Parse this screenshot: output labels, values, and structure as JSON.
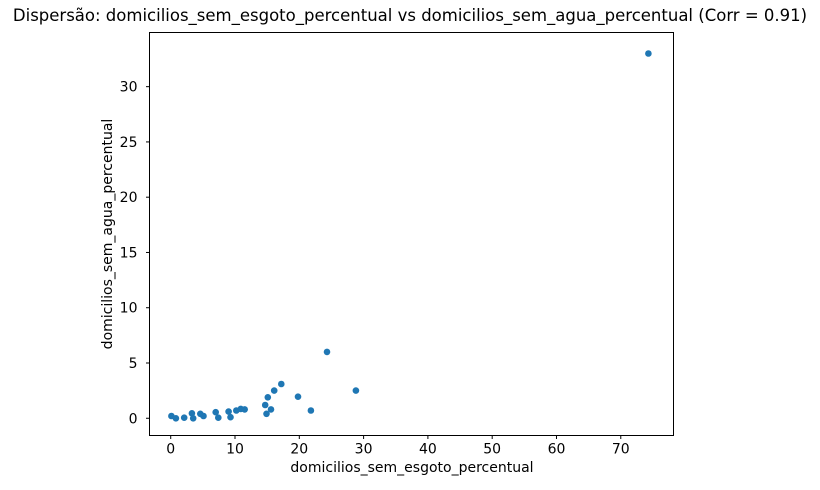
{
  "chart_data": {
    "type": "scatter",
    "title": "Dispersão: domicilios_sem_esgoto_percentual vs domicilios_sem_agua_percentual (Corr = 0.91)",
    "xlabel": "domicilios_sem_esgoto_percentual",
    "ylabel": "domicilios_sem_agua_percentual",
    "correlation": 0.91,
    "xlim": [
      -3.3,
      78.2
    ],
    "ylim": [
      -1.56,
      34.9
    ],
    "x_ticks": [
      0,
      10,
      20,
      30,
      40,
      50,
      60,
      70
    ],
    "y_ticks": [
      0,
      5,
      10,
      15,
      20,
      25,
      30
    ],
    "grid": false,
    "legend": null,
    "marker_color": "#1f77b4",
    "axis_color": "#000000",
    "background_color": "#ffffff",
    "points": [
      {
        "x": 0.1,
        "y": 0.2
      },
      {
        "x": 0.8,
        "y": 0.0
      },
      {
        "x": 2.1,
        "y": 0.05
      },
      {
        "x": 3.3,
        "y": 0.45
      },
      {
        "x": 3.5,
        "y": 0.0
      },
      {
        "x": 4.6,
        "y": 0.4
      },
      {
        "x": 5.1,
        "y": 0.2
      },
      {
        "x": 7.0,
        "y": 0.55
      },
      {
        "x": 7.4,
        "y": 0.05
      },
      {
        "x": 9.0,
        "y": 0.6
      },
      {
        "x": 9.3,
        "y": 0.1
      },
      {
        "x": 10.2,
        "y": 0.7
      },
      {
        "x": 10.9,
        "y": 0.85
      },
      {
        "x": 11.5,
        "y": 0.8
      },
      {
        "x": 14.7,
        "y": 1.2
      },
      {
        "x": 14.9,
        "y": 0.4
      },
      {
        "x": 15.1,
        "y": 1.9
      },
      {
        "x": 15.6,
        "y": 0.8
      },
      {
        "x": 16.1,
        "y": 2.5
      },
      {
        "x": 17.2,
        "y": 3.1
      },
      {
        "x": 19.8,
        "y": 1.95
      },
      {
        "x": 21.8,
        "y": 0.7
      },
      {
        "x": 24.3,
        "y": 6.0
      },
      {
        "x": 28.8,
        "y": 2.5
      },
      {
        "x": 74.3,
        "y": 33.0
      }
    ]
  }
}
